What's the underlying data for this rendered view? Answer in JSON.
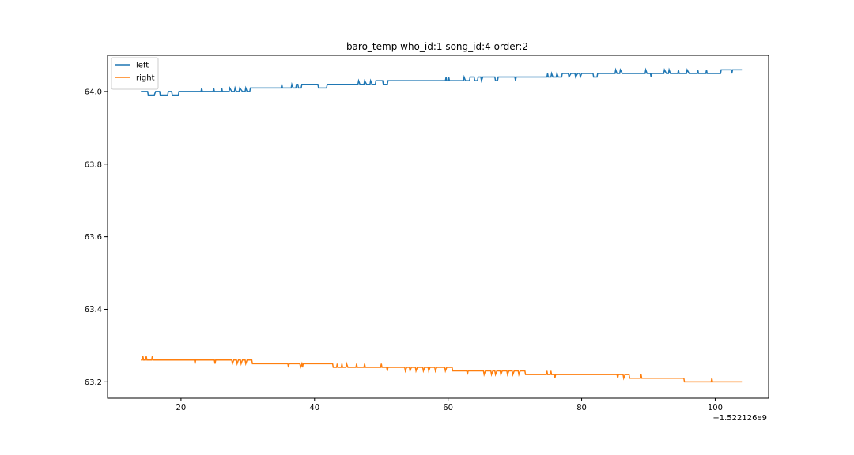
{
  "chart_data": {
    "type": "line",
    "title": "baro_temp who_id:1 song_id:4 order:2",
    "xlabel": "",
    "ylabel": "",
    "x_offset_label": "+1.522126e9",
    "xlim": [
      9,
      108
    ],
    "ylim": [
      63.155,
      64.1
    ],
    "x_ticks": [
      20,
      40,
      60,
      80,
      100
    ],
    "y_ticks": [
      63.2,
      63.4,
      63.6,
      63.8,
      64.0
    ],
    "y_tick_labels": [
      "63.2",
      "63.4",
      "63.6",
      "63.8",
      "64.0"
    ],
    "grid": false,
    "legend_position": "top-left",
    "series": [
      {
        "name": "left",
        "color": "#1f77b4",
        "points": [
          [
            14,
            64.0
          ],
          [
            15,
            64.0
          ],
          [
            15.1,
            63.99
          ],
          [
            16,
            63.99
          ],
          [
            16.2,
            64.0
          ],
          [
            16.8,
            64.0
          ],
          [
            16.9,
            63.99
          ],
          [
            18,
            63.99
          ],
          [
            18.1,
            64.0
          ],
          [
            18.6,
            64.0
          ],
          [
            18.7,
            63.99
          ],
          [
            19.6,
            63.99
          ],
          [
            19.7,
            64.0
          ],
          [
            20.2,
            64.0
          ],
          [
            20.3,
            64.0
          ],
          [
            23,
            64.0
          ],
          [
            23.1,
            64.01
          ],
          [
            23.2,
            64.0
          ],
          [
            24.8,
            64.0
          ],
          [
            24.9,
            64.01
          ],
          [
            25,
            64.0
          ],
          [
            26,
            64.0
          ],
          [
            26.1,
            64.01
          ],
          [
            26.2,
            64.0
          ],
          [
            27.2,
            64.0
          ],
          [
            27.3,
            64.01
          ],
          [
            27.6,
            64.0
          ],
          [
            28,
            64.0
          ],
          [
            28.1,
            64.01
          ],
          [
            28.3,
            64.0
          ],
          [
            28.7,
            64.0
          ],
          [
            28.8,
            64.01
          ],
          [
            29.2,
            64.0
          ],
          [
            29.6,
            64.0
          ],
          [
            29.7,
            64.01
          ],
          [
            29.9,
            64.0
          ],
          [
            30.3,
            64.0
          ],
          [
            30.4,
            64.01
          ],
          [
            30.6,
            64.01
          ],
          [
            35,
            64.01
          ],
          [
            35.1,
            64.02
          ],
          [
            35.2,
            64.01
          ],
          [
            36.5,
            64.01
          ],
          [
            36.6,
            64.02
          ],
          [
            36.8,
            64.01
          ],
          [
            37.2,
            64.01
          ],
          [
            37.3,
            64.02
          ],
          [
            37.5,
            64.02
          ],
          [
            37.6,
            64.01
          ],
          [
            38,
            64.01
          ],
          [
            38.1,
            64.02
          ],
          [
            38.4,
            64.02
          ],
          [
            40.5,
            64.02
          ],
          [
            40.6,
            64.01
          ],
          [
            41.8,
            64.01
          ],
          [
            41.9,
            64.02
          ],
          [
            46.5,
            64.02
          ],
          [
            46.6,
            64.03
          ],
          [
            46.8,
            64.02
          ],
          [
            47.4,
            64.02
          ],
          [
            47.5,
            64.03
          ],
          [
            47.8,
            64.02
          ],
          [
            48.3,
            64.02
          ],
          [
            48.4,
            64.03
          ],
          [
            48.6,
            64.02
          ],
          [
            49.1,
            64.02
          ],
          [
            49.2,
            64.03
          ],
          [
            49.4,
            64.03
          ],
          [
            50.2,
            64.03
          ],
          [
            50.3,
            64.02
          ],
          [
            50.9,
            64.02
          ],
          [
            51,
            64.03
          ],
          [
            59.6,
            64.03
          ],
          [
            59.7,
            64.04
          ],
          [
            59.8,
            64.03
          ],
          [
            60,
            64.03
          ],
          [
            60.1,
            64.04
          ],
          [
            60.2,
            64.03
          ],
          [
            62.3,
            64.03
          ],
          [
            62.4,
            64.04
          ],
          [
            62.6,
            64.03
          ],
          [
            63.2,
            64.03
          ],
          [
            63.3,
            64.04
          ],
          [
            63.9,
            64.04
          ],
          [
            64,
            64.03
          ],
          [
            64.4,
            64.03
          ],
          [
            64.5,
            64.04
          ],
          [
            64.9,
            64.04
          ],
          [
            65,
            64.03
          ],
          [
            65.2,
            64.04
          ],
          [
            67,
            64.04
          ],
          [
            67.1,
            64.03
          ],
          [
            67.4,
            64.03
          ],
          [
            67.5,
            64.04
          ],
          [
            70,
            64.04
          ],
          [
            70.1,
            64.03
          ],
          [
            70.2,
            64.04
          ],
          [
            74.8,
            64.04
          ],
          [
            74.9,
            64.05
          ],
          [
            75,
            64.04
          ],
          [
            75.4,
            64.04
          ],
          [
            75.5,
            64.05
          ],
          [
            75.7,
            64.04
          ],
          [
            76.2,
            64.04
          ],
          [
            76.3,
            64.05
          ],
          [
            76.5,
            64.04
          ],
          [
            77,
            64.04
          ],
          [
            77.1,
            64.05
          ],
          [
            78,
            64.05
          ],
          [
            78.1,
            64.04
          ],
          [
            78.4,
            64.05
          ],
          [
            79,
            64.05
          ],
          [
            79.1,
            64.04
          ],
          [
            79.4,
            64.05
          ],
          [
            79.7,
            64.05
          ],
          [
            79.8,
            64.04
          ],
          [
            80,
            64.05
          ],
          [
            81.7,
            64.05
          ],
          [
            81.8,
            64.04
          ],
          [
            82.3,
            64.04
          ],
          [
            82.4,
            64.05
          ],
          [
            85,
            64.05
          ],
          [
            85.1,
            64.06
          ],
          [
            85.3,
            64.05
          ],
          [
            85.7,
            64.05
          ],
          [
            85.8,
            64.06
          ],
          [
            86.1,
            64.05
          ],
          [
            89.5,
            64.05
          ],
          [
            89.6,
            64.06
          ],
          [
            89.8,
            64.05
          ],
          [
            90.3,
            64.05
          ],
          [
            90.4,
            64.04
          ],
          [
            90.5,
            64.05
          ],
          [
            92.3,
            64.05
          ],
          [
            92.4,
            64.06
          ],
          [
            92.7,
            64.05
          ],
          [
            93,
            64.05
          ],
          [
            93.1,
            64.06
          ],
          [
            93.3,
            64.05
          ],
          [
            94.4,
            64.05
          ],
          [
            94.5,
            64.06
          ],
          [
            94.6,
            64.05
          ],
          [
            95.7,
            64.05
          ],
          [
            95.8,
            64.06
          ],
          [
            96.1,
            64.05
          ],
          [
            97.3,
            64.05
          ],
          [
            97.4,
            64.06
          ],
          [
            97.5,
            64.05
          ],
          [
            98.6,
            64.05
          ],
          [
            98.7,
            64.06
          ],
          [
            98.8,
            64.05
          ],
          [
            100.8,
            64.05
          ],
          [
            100.9,
            64.06
          ],
          [
            102.4,
            64.06
          ],
          [
            102.5,
            64.05
          ],
          [
            102.6,
            64.06
          ],
          [
            104,
            64.06
          ]
        ]
      },
      {
        "name": "right",
        "color": "#ff7f0e",
        "points": [
          [
            14,
            63.26
          ],
          [
            14.2,
            63.26
          ],
          [
            14.3,
            63.27
          ],
          [
            14.4,
            63.26
          ],
          [
            14.7,
            63.26
          ],
          [
            14.8,
            63.27
          ],
          [
            14.9,
            63.26
          ],
          [
            15.6,
            63.26
          ],
          [
            15.7,
            63.27
          ],
          [
            15.8,
            63.26
          ],
          [
            22,
            63.26
          ],
          [
            22.1,
            63.25
          ],
          [
            22.2,
            63.26
          ],
          [
            25,
            63.26
          ],
          [
            25.1,
            63.25
          ],
          [
            25.2,
            63.26
          ],
          [
            27.6,
            63.26
          ],
          [
            27.7,
            63.25
          ],
          [
            27.9,
            63.26
          ],
          [
            28.3,
            63.26
          ],
          [
            28.4,
            63.25
          ],
          [
            28.6,
            63.26
          ],
          [
            28.9,
            63.26
          ],
          [
            29,
            63.25
          ],
          [
            29.2,
            63.26
          ],
          [
            29.6,
            63.26
          ],
          [
            29.7,
            63.25
          ],
          [
            29.9,
            63.26
          ],
          [
            30.6,
            63.26
          ],
          [
            30.7,
            63.25
          ],
          [
            36,
            63.25
          ],
          [
            36.1,
            63.24
          ],
          [
            36.2,
            63.25
          ],
          [
            37.8,
            63.25
          ],
          [
            37.9,
            63.24
          ],
          [
            38.1,
            63.25
          ],
          [
            38.2,
            63.24
          ],
          [
            38.3,
            63.25
          ],
          [
            42.7,
            63.25
          ],
          [
            42.8,
            63.24
          ],
          [
            43.3,
            63.24
          ],
          [
            43.4,
            63.25
          ],
          [
            43.5,
            63.24
          ],
          [
            44,
            63.24
          ],
          [
            44.1,
            63.25
          ],
          [
            44.2,
            63.24
          ],
          [
            44.7,
            63.24
          ],
          [
            44.8,
            63.25
          ],
          [
            45,
            63.24
          ],
          [
            46.2,
            63.24
          ],
          [
            46.3,
            63.25
          ],
          [
            46.4,
            63.24
          ],
          [
            47.4,
            63.24
          ],
          [
            47.5,
            63.25
          ],
          [
            47.6,
            63.24
          ],
          [
            49.9,
            63.24
          ],
          [
            50,
            63.25
          ],
          [
            50.1,
            63.24
          ],
          [
            50.8,
            63.24
          ],
          [
            50.9,
            63.23
          ],
          [
            51,
            63.24
          ],
          [
            53.5,
            63.24
          ],
          [
            53.6,
            63.23
          ],
          [
            53.8,
            63.24
          ],
          [
            54.2,
            63.24
          ],
          [
            54.3,
            63.23
          ],
          [
            54.5,
            63.24
          ],
          [
            55.1,
            63.24
          ],
          [
            55.2,
            63.23
          ],
          [
            55.4,
            63.24
          ],
          [
            56.2,
            63.24
          ],
          [
            56.3,
            63.23
          ],
          [
            56.5,
            63.24
          ],
          [
            57,
            63.24
          ],
          [
            57.1,
            63.23
          ],
          [
            57.3,
            63.24
          ],
          [
            58,
            63.24
          ],
          [
            58.1,
            63.23
          ],
          [
            58.3,
            63.24
          ],
          [
            59.5,
            63.24
          ],
          [
            59.6,
            63.23
          ],
          [
            59.8,
            63.24
          ],
          [
            60.6,
            63.24
          ],
          [
            60.7,
            63.23
          ],
          [
            62,
            63.23
          ],
          [
            62.1,
            63.23
          ],
          [
            62.8,
            63.23
          ],
          [
            62.9,
            63.22
          ],
          [
            63,
            63.23
          ],
          [
            65.3,
            63.23
          ],
          [
            65.4,
            63.22
          ],
          [
            65.6,
            63.23
          ],
          [
            66.4,
            63.23
          ],
          [
            66.5,
            63.22
          ],
          [
            66.7,
            63.23
          ],
          [
            67,
            63.23
          ],
          [
            67.1,
            63.22
          ],
          [
            67.3,
            63.23
          ],
          [
            67.8,
            63.23
          ],
          [
            67.9,
            63.22
          ],
          [
            68.1,
            63.23
          ],
          [
            68.8,
            63.23
          ],
          [
            68.9,
            63.22
          ],
          [
            69.1,
            63.23
          ],
          [
            69.6,
            63.23
          ],
          [
            69.7,
            63.22
          ],
          [
            69.9,
            63.23
          ],
          [
            70.5,
            63.23
          ],
          [
            70.6,
            63.22
          ],
          [
            70.8,
            63.23
          ],
          [
            71.5,
            63.23
          ],
          [
            71.6,
            63.22
          ],
          [
            74.7,
            63.22
          ],
          [
            74.8,
            63.23
          ],
          [
            74.9,
            63.22
          ],
          [
            75.3,
            63.22
          ],
          [
            75.4,
            63.23
          ],
          [
            75.5,
            63.22
          ],
          [
            75.9,
            63.22
          ],
          [
            76,
            63.21
          ],
          [
            76.1,
            63.22
          ],
          [
            85.3,
            63.22
          ],
          [
            85.4,
            63.21
          ],
          [
            85.5,
            63.22
          ],
          [
            86.2,
            63.22
          ],
          [
            86.3,
            63.21
          ],
          [
            86.5,
            63.22
          ],
          [
            87.1,
            63.22
          ],
          [
            87.2,
            63.21
          ],
          [
            88.8,
            63.21
          ],
          [
            88.9,
            63.22
          ],
          [
            89,
            63.21
          ],
          [
            95.3,
            63.21
          ],
          [
            95.4,
            63.2
          ],
          [
            99.4,
            63.2
          ],
          [
            99.5,
            63.21
          ],
          [
            99.6,
            63.2
          ],
          [
            104,
            63.2
          ]
        ]
      }
    ]
  }
}
